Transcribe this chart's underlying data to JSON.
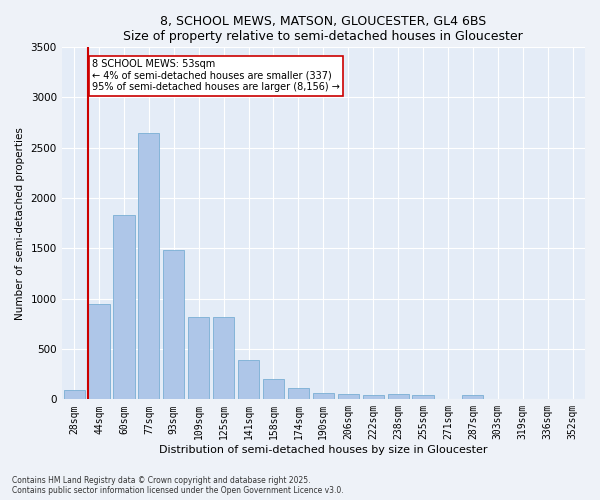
{
  "title": "8, SCHOOL MEWS, MATSON, GLOUCESTER, GL4 6BS",
  "subtitle": "Size of property relative to semi-detached houses in Gloucester",
  "xlabel": "Distribution of semi-detached houses by size in Gloucester",
  "ylabel": "Number of semi-detached properties",
  "categories": [
    "28sqm",
    "44sqm",
    "60sqm",
    "77sqm",
    "93sqm",
    "109sqm",
    "125sqm",
    "141sqm",
    "158sqm",
    "174sqm",
    "190sqm",
    "206sqm",
    "222sqm",
    "238sqm",
    "255sqm",
    "271sqm",
    "287sqm",
    "303sqm",
    "319sqm",
    "336sqm",
    "352sqm"
  ],
  "values": [
    95,
    950,
    1830,
    2650,
    1480,
    820,
    820,
    390,
    200,
    110,
    65,
    55,
    40,
    55,
    40,
    0,
    40,
    0,
    0,
    0,
    0
  ],
  "bar_color": "#aec6e8",
  "bar_edge_color": "#7aafd4",
  "vline_x_index": 1,
  "vline_color": "#cc0000",
  "annotation_text": "8 SCHOOL MEWS: 53sqm\n← 4% of semi-detached houses are smaller (337)\n95% of semi-detached houses are larger (8,156) →",
  "annotation_box_color": "#ffffff",
  "annotation_box_edge": "#cc0000",
  "ylim": [
    0,
    3500
  ],
  "yticks": [
    0,
    500,
    1000,
    1500,
    2000,
    2500,
    3000,
    3500
  ],
  "footer": "Contains HM Land Registry data © Crown copyright and database right 2025.\nContains public sector information licensed under the Open Government Licence v3.0.",
  "bg_color": "#eef2f8",
  "plot_bg_color": "#e4ecf7"
}
